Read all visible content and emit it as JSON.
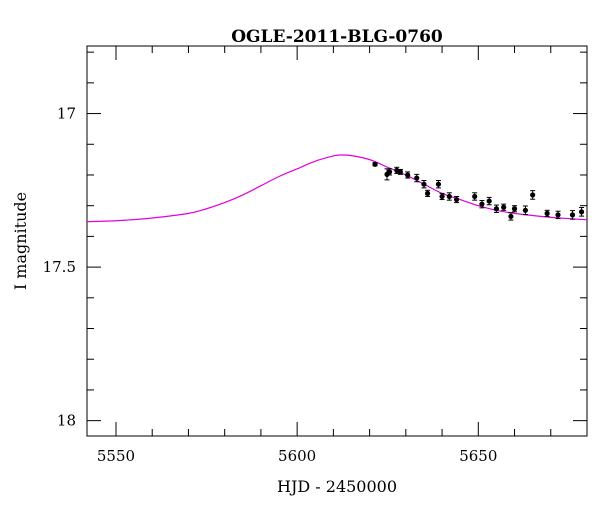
{
  "chart_data": {
    "type": "scatter",
    "title": "OGLE-2011-BLG-0760",
    "xlabel": "HJD - 2450000",
    "ylabel": "I magnitude",
    "xlim": [
      5542,
      5680
    ],
    "ylim": [
      18.05,
      16.78
    ],
    "y_inverted": true,
    "xticks": [
      5550,
      5600,
      5650
    ],
    "yticks": [
      17,
      17.5,
      18
    ],
    "ytick_labels": [
      "17",
      "17.5",
      "18"
    ],
    "grid": false,
    "colors": {
      "model": "#e000e0",
      "data": "#000000"
    },
    "model_curve": {
      "name": "model",
      "x": [
        5542,
        5550,
        5560,
        5570,
        5575,
        5580,
        5585,
        5590,
        5595,
        5600,
        5605,
        5610,
        5612,
        5615,
        5620,
        5625,
        5630,
        5635,
        5640,
        5645,
        5650,
        5655,
        5660,
        5665,
        5670,
        5675,
        5680
      ],
      "y": [
        17.352,
        17.349,
        17.34,
        17.325,
        17.31,
        17.29,
        17.265,
        17.235,
        17.205,
        17.18,
        17.155,
        17.138,
        17.135,
        17.137,
        17.15,
        17.175,
        17.2,
        17.23,
        17.26,
        17.28,
        17.3,
        17.315,
        17.325,
        17.332,
        17.338,
        17.342,
        17.346
      ]
    },
    "series": [
      {
        "name": "data",
        "x": [
          5621.5,
          5624.8,
          5625.5,
          5627.5,
          5628.5,
          5630.5,
          5633,
          5635,
          5636,
          5639,
          5640,
          5642,
          5644,
          5649,
          5651,
          5653,
          5655,
          5657,
          5659,
          5660,
          5663,
          5665,
          5669,
          5672,
          5676,
          5678.5
        ],
        "y": [
          17.165,
          17.198,
          17.19,
          17.185,
          17.19,
          17.2,
          17.21,
          17.23,
          17.26,
          17.23,
          17.27,
          17.27,
          17.28,
          17.27,
          17.295,
          17.285,
          17.31,
          17.305,
          17.335,
          17.31,
          17.315,
          17.265,
          17.325,
          17.33,
          17.33,
          17.32
        ],
        "err": [
          0.005,
          0.018,
          0.01,
          0.01,
          0.008,
          0.01,
          0.012,
          0.012,
          0.01,
          0.012,
          0.01,
          0.012,
          0.01,
          0.012,
          0.012,
          0.012,
          0.012,
          0.01,
          0.012,
          0.01,
          0.014,
          0.014,
          0.01,
          0.012,
          0.014,
          0.014
        ]
      }
    ]
  }
}
